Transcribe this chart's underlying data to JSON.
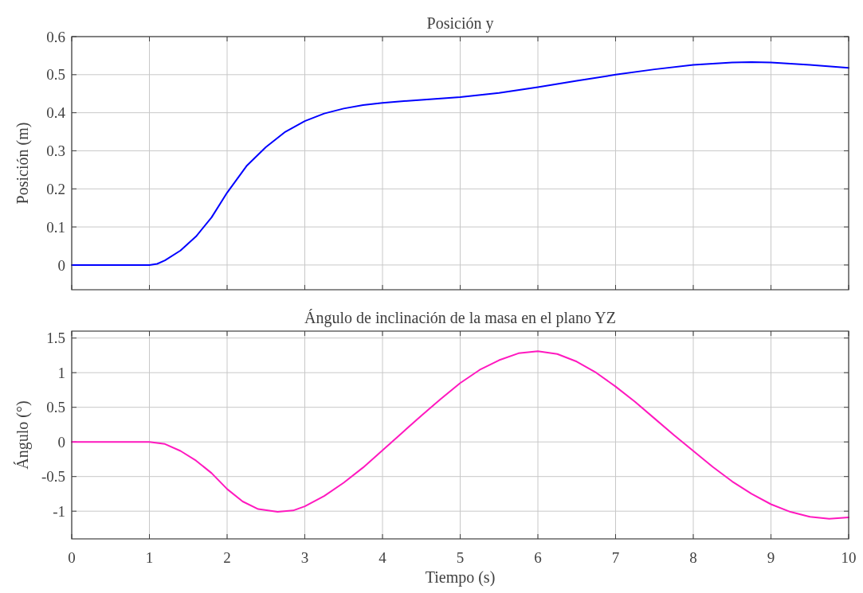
{
  "chart_data": [
    {
      "type": "line",
      "title": "Posición y",
      "ylabel": "Posición (m)",
      "xlim": [
        0,
        10
      ],
      "xticks": [
        0,
        1,
        2,
        3,
        4,
        5,
        6,
        7,
        8,
        9,
        10
      ],
      "ylim": [
        -0.065,
        0.6
      ],
      "yticks": [
        0,
        0.1,
        0.2,
        0.3,
        0.4,
        0.5,
        0.6
      ],
      "grid": true,
      "tick_labels": "y",
      "x": [
        0,
        0.5,
        1,
        1.1,
        1.2,
        1.4,
        1.6,
        1.8,
        2,
        2.25,
        2.5,
        2.75,
        3,
        3.25,
        3.5,
        3.75,
        4,
        4.5,
        5,
        5.5,
        6,
        6.5,
        7,
        7.5,
        8,
        8.5,
        8.75,
        9,
        9.5,
        10
      ],
      "series": [
        {
          "color": "#0000ff",
          "values": [
            0,
            0,
            0,
            0.003,
            0.012,
            0.038,
            0.075,
            0.125,
            0.19,
            0.26,
            0.31,
            0.35,
            0.378,
            0.398,
            0.411,
            0.42,
            0.426,
            0.434,
            0.441,
            0.452,
            0.467,
            0.484,
            0.5,
            0.514,
            0.526,
            0.532,
            0.533,
            0.532,
            0.526,
            0.518
          ]
        }
      ]
    },
    {
      "type": "line",
      "title": "Ángulo de inclinación de la masa en el plano YZ",
      "xlabel": "Tiempo (s)",
      "ylabel": "Ángulo (°)",
      "xlim": [
        0,
        10
      ],
      "xticks": [
        0,
        1,
        2,
        3,
        4,
        5,
        6,
        7,
        8,
        9,
        10
      ],
      "ylim": [
        -1.4,
        1.6
      ],
      "yticks": [
        -1,
        -0.5,
        0,
        0.5,
        1,
        1.5
      ],
      "grid": true,
      "x": [
        0,
        0.5,
        1,
        1.2,
        1.4,
        1.6,
        1.8,
        2,
        2.2,
        2.4,
        2.65,
        2.85,
        3,
        3.25,
        3.5,
        3.75,
        4,
        4.25,
        4.5,
        4.75,
        5,
        5.25,
        5.5,
        5.75,
        6,
        6.25,
        6.5,
        6.75,
        7,
        7.25,
        7.5,
        7.75,
        8,
        8.25,
        8.5,
        8.75,
        9,
        9.25,
        9.5,
        9.75,
        10
      ],
      "series": [
        {
          "color": "#ff19bf",
          "values": [
            0,
            0,
            0,
            -0.03,
            -0.13,
            -0.27,
            -0.45,
            -0.68,
            -0.86,
            -0.97,
            -1.01,
            -0.99,
            -0.93,
            -0.78,
            -0.59,
            -0.37,
            -0.12,
            0.13,
            0.38,
            0.62,
            0.85,
            1.04,
            1.18,
            1.28,
            1.31,
            1.27,
            1.16,
            1,
            0.8,
            0.58,
            0.34,
            0.1,
            -0.13,
            -0.36,
            -0.57,
            -0.75,
            -0.9,
            -1.01,
            -1.08,
            -1.11,
            -1.09
          ]
        }
      ]
    }
  ]
}
